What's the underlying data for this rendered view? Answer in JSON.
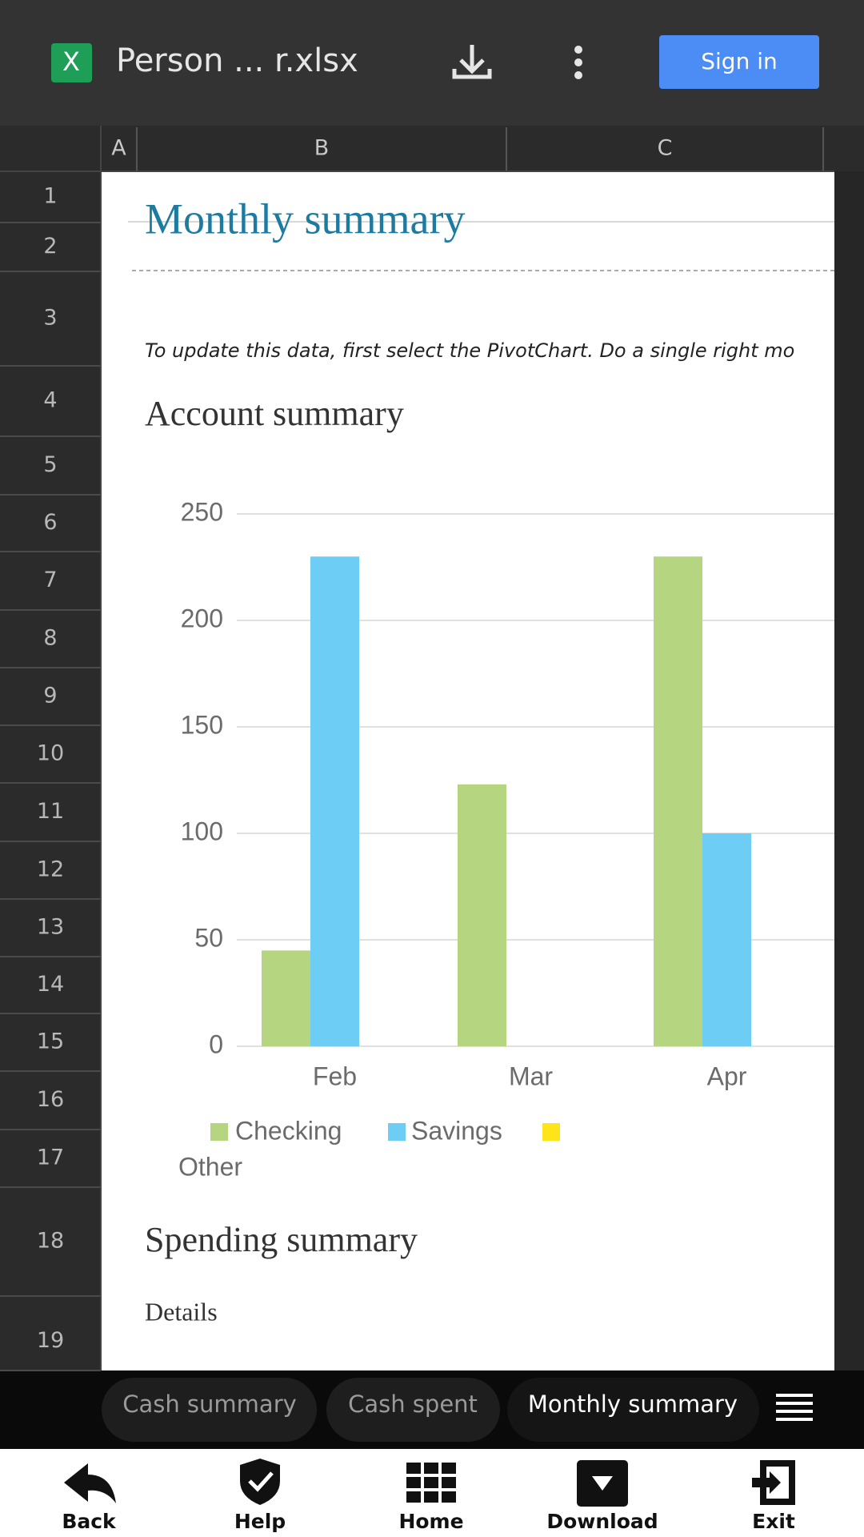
{
  "app_bar": {
    "file_icon": "X",
    "file_name": "Person ... r.xlsx",
    "sign_in": "Sign in"
  },
  "column_headers": [
    "A",
    "B",
    "C"
  ],
  "row_headers": [
    "1",
    "2",
    "3",
    "4",
    "5",
    "6",
    "7",
    "8",
    "9",
    "10",
    "11",
    "12",
    "13",
    "14",
    "15",
    "16",
    "17",
    "18",
    "19"
  ],
  "sheet": {
    "title": "Monthly summary",
    "note": "To update this data, first select the PivotChart.  Do a single right mo",
    "section": "Account summary",
    "section_2": "Spending summary",
    "details": "Details"
  },
  "chart_data": {
    "type": "bar",
    "categories": [
      "Feb",
      "Mar",
      "Apr"
    ],
    "series": [
      {
        "name": "Checking",
        "color": "#b5d580",
        "values": [
          45,
          123,
          230
        ]
      },
      {
        "name": "Savings",
        "color": "#6dcdf5",
        "values": [
          230,
          0,
          100
        ]
      },
      {
        "name": "Other",
        "color": "#ffe41a",
        "values": [
          0,
          0,
          0
        ]
      }
    ],
    "ylim": [
      0,
      250
    ],
    "yticks": [
      0,
      50,
      100,
      150,
      200,
      250
    ],
    "grid": true,
    "legend": "bottom"
  },
  "sheet_tabs": [
    "Cash summary",
    "Cash spent",
    "Monthly summary"
  ],
  "nav": [
    "Back",
    "Help",
    "Home",
    "Download",
    "Exit"
  ]
}
